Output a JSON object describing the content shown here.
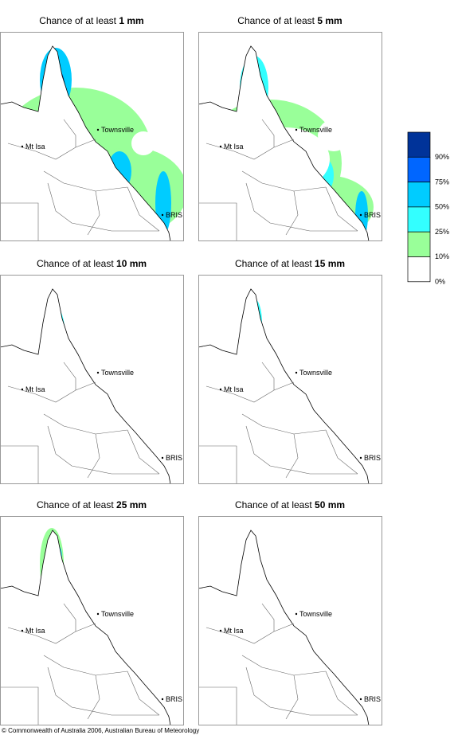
{
  "panels": [
    {
      "title_prefix": "Chance of at least",
      "amount": "1 mm",
      "places": [
        "Townsville",
        "Mt Isa",
        "BRIS"
      ]
    },
    {
      "title_prefix": "Chance of at least",
      "amount": "5 mm",
      "places": [
        "Townsville",
        "Mt Isa",
        "BRIS"
      ]
    },
    {
      "title_prefix": "Chance of at least",
      "amount": "10 mm",
      "places": [
        "Townsville",
        "Mt Isa",
        "BRIS"
      ]
    },
    {
      "title_prefix": "Chance of at least",
      "amount": "15 mm",
      "places": [
        "Townsville",
        "Mt Isa",
        "BRIS"
      ]
    },
    {
      "title_prefix": "Chance of at least",
      "amount": "25 mm",
      "places": [
        "Townsville",
        "Mt Isa",
        "BRIS"
      ]
    },
    {
      "title_prefix": "Chance of at least",
      "amount": "50 mm",
      "places": [
        "Townsville",
        "Mt Isa",
        "BRIS"
      ]
    }
  ],
  "legend": {
    "items": [
      {
        "label": "90%",
        "color": "#003399"
      },
      {
        "label": "75%",
        "color": "#0066ff"
      },
      {
        "label": "50%",
        "color": "#00ccff"
      },
      {
        "label": "25%",
        "color": "#33ffff"
      },
      {
        "label": "10%",
        "color": "#99ff99"
      },
      {
        "label": "0%",
        "color": "#ffffff"
      }
    ]
  },
  "footer": "© Commonwealth of Australia 2006, Australian Bureau of Meteorology"
}
